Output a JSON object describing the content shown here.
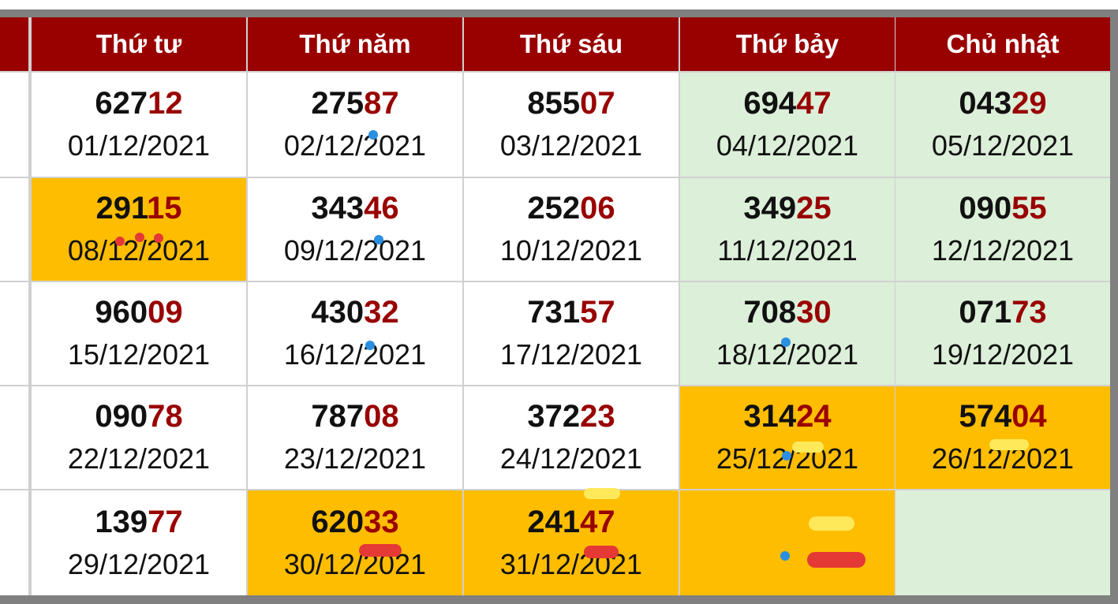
{
  "colors": {
    "header": "#990000",
    "tail": "#990000",
    "weekend": "#dcefd9",
    "highlight": "#ffbd00",
    "white": "#ffffff"
  },
  "header": {
    "days": [
      "Thứ tư",
      "Thứ năm",
      "Thứ sáu",
      "Thứ bảy",
      "Chủ nhật"
    ]
  },
  "rows": [
    [
      {
        "head": "627",
        "tail": "12",
        "date": "01/12/2021",
        "bg": "white"
      },
      {
        "head": "275",
        "tail": "87",
        "date": "02/12/2021",
        "bg": "white"
      },
      {
        "head": "855",
        "tail": "07",
        "date": "03/12/2021",
        "bg": "white"
      },
      {
        "head": "694",
        "tail": "47",
        "date": "04/12/2021",
        "bg": "weekend"
      },
      {
        "head": "043",
        "tail": "29",
        "date": "05/12/2021",
        "bg": "weekend"
      }
    ],
    [
      {
        "head": "291",
        "tail": "15",
        "date": "08/12/2021",
        "bg": "highlight"
      },
      {
        "head": "343",
        "tail": "46",
        "date": "09/12/2021",
        "bg": "white"
      },
      {
        "head": "252",
        "tail": "06",
        "date": "10/12/2021",
        "bg": "white"
      },
      {
        "head": "349",
        "tail": "25",
        "date": "11/12/2021",
        "bg": "weekend"
      },
      {
        "head": "090",
        "tail": "55",
        "date": "12/12/2021",
        "bg": "weekend"
      }
    ],
    [
      {
        "head": "960",
        "tail": "09",
        "date": "15/12/2021",
        "bg": "white"
      },
      {
        "head": "430",
        "tail": "32",
        "date": "16/12/2021",
        "bg": "white"
      },
      {
        "head": "731",
        "tail": "57",
        "date": "17/12/2021",
        "bg": "white"
      },
      {
        "head": "708",
        "tail": "30",
        "date": "18/12/2021",
        "bg": "weekend"
      },
      {
        "head": "071",
        "tail": "73",
        "date": "19/12/2021",
        "bg": "weekend"
      }
    ],
    [
      {
        "head": "090",
        "tail": "78",
        "date": "22/12/2021",
        "bg": "white"
      },
      {
        "head": "787",
        "tail": "08",
        "date": "23/12/2021",
        "bg": "white"
      },
      {
        "head": "372",
        "tail": "23",
        "date": "24/12/2021",
        "bg": "white"
      },
      {
        "head": "314",
        "tail": "24",
        "date": "25/12/2021",
        "bg": "highlight"
      },
      {
        "head": "574",
        "tail": "04",
        "date": "26/12/2021",
        "bg": "highlight"
      }
    ],
    [
      {
        "head": "139",
        "tail": "77",
        "date": "29/12/2021",
        "bg": "white"
      },
      {
        "head": "620",
        "tail": "33",
        "date": "30/12/2021",
        "bg": "highlight"
      },
      {
        "head": "241",
        "tail": "47",
        "date": "31/12/2021",
        "bg": "highlight"
      },
      {
        "head": "",
        "tail": "",
        "date": "",
        "bg": "highlight"
      },
      {
        "head": "",
        "tail": "",
        "date": "",
        "bg": "weekend"
      }
    ]
  ]
}
